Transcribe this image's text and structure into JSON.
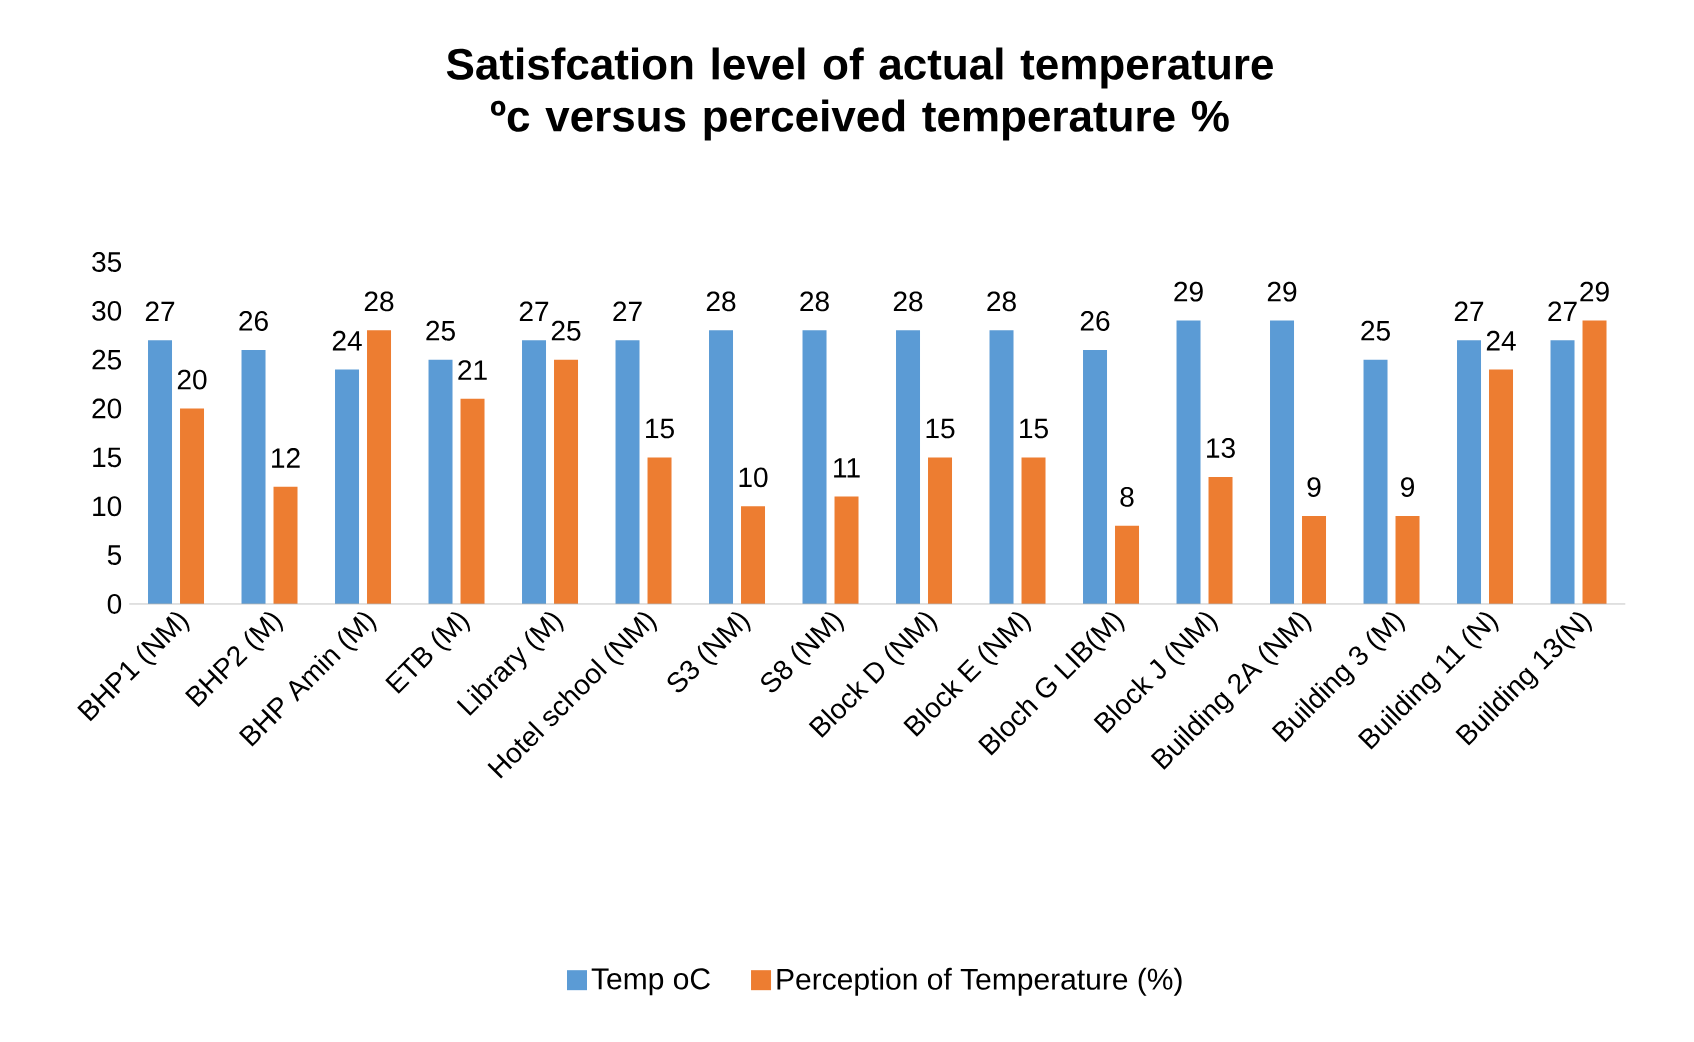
{
  "chart_data": {
    "type": "bar",
    "title": "Satisfcation level of actual temperature ºc versus perceived temperature %",
    "categories": [
      "BHP1  (NM)",
      "BHP2 (M)",
      "BHP Amin (M)",
      "ETB (M)",
      "Library (M)",
      "Hotel school (NM)",
      "S3 (NM)",
      "S8 (NM)",
      "Block D (NM)",
      "Block E (NM)",
      "Bloch G LIB(M)",
      "Block J (NM)",
      "Building 2A (NM)",
      "Building 3 (M)",
      "Building 11 (N)",
      "Building 13(N)"
    ],
    "series": [
      {
        "name": "Temp oC",
        "color": "#5b9bd5",
        "values": [
          27,
          26,
          24,
          25,
          27,
          27,
          28,
          28,
          28,
          28,
          26,
          29,
          29,
          25,
          27,
          27
        ]
      },
      {
        "name": "Perception of Temperature (%)",
        "color": "#ed7d31",
        "values": [
          20,
          12,
          28,
          21,
          25,
          15,
          10,
          11,
          15,
          15,
          8,
          13,
          9,
          9,
          24,
          29
        ]
      }
    ],
    "ylim": [
      0,
      35
    ],
    "yticks": [
      0,
      5,
      10,
      15,
      20,
      25,
      30,
      35
    ],
    "data_labels": true,
    "legend": "bottom"
  }
}
